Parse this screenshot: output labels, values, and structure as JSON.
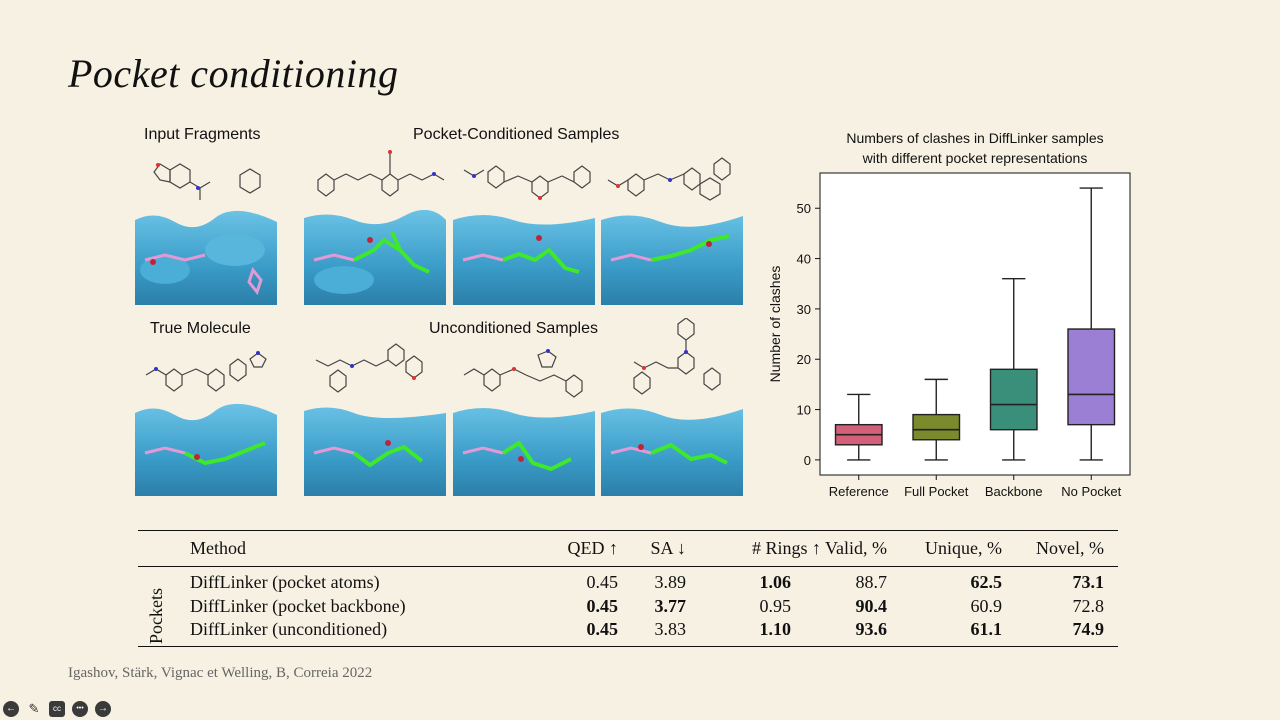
{
  "slide": {
    "title": "Pocket conditioning",
    "citation": "Igashov, Stärk, Vignac et Welling, B, Correia 2022"
  },
  "figure": {
    "input_fragments": "Input Fragments",
    "pocket_conditioned": "Pocket-Conditioned Samples",
    "true_molecule": "True Molecule",
    "unconditioned": "Unconditioned Samples"
  },
  "chart_data": {
    "type": "box",
    "title": [
      "Numbers of clashes in DiffLinker samples",
      "with different pocket representations"
    ],
    "xlabel": "",
    "ylabel": "Number of clashes",
    "ylim": [
      -3,
      57
    ],
    "yticks": [
      0,
      10,
      20,
      30,
      40,
      50
    ],
    "categories": [
      "Reference",
      "Full Pocket",
      "Backbone",
      "No Pocket"
    ],
    "boxes": [
      {
        "min": 0,
        "q1": 3,
        "median": 5,
        "q3": 7,
        "max": 13,
        "color": "#d45f78"
      },
      {
        "min": 0,
        "q1": 4,
        "median": 6,
        "q3": 9,
        "max": 16,
        "color": "#7a8a2c"
      },
      {
        "min": 0,
        "q1": 6,
        "median": 11,
        "q3": 18,
        "max": 36,
        "color": "#3a8f7a"
      },
      {
        "min": 0,
        "q1": 7,
        "median": 13,
        "q3": 26,
        "max": 54,
        "color": "#9b7fd4"
      }
    ],
    "grid": false
  },
  "table": {
    "headers": [
      "Method",
      "QED ↑",
      "SA ↓",
      "# Rings ↑",
      "Valid, %",
      "Unique, %",
      "Novel, %"
    ],
    "group_label": "Pockets",
    "rows": [
      {
        "method": "DiffLinker (pocket atoms)",
        "qed": "0.45",
        "sa": "3.89",
        "rings": "1.06",
        "valid": "88.7",
        "unique": "62.5",
        "novel": "73.1",
        "bold": {
          "qed": false,
          "sa": false,
          "rings": true,
          "valid": false,
          "unique": true,
          "novel": true
        }
      },
      {
        "method": "DiffLinker (pocket backbone)",
        "qed": "0.45",
        "sa": "3.77",
        "rings": "0.95",
        "valid": "90.4",
        "unique": "60.9",
        "novel": "72.8",
        "bold": {
          "qed": true,
          "sa": true,
          "rings": false,
          "valid": true,
          "unique": false,
          "novel": false
        }
      },
      {
        "method": "DiffLinker (unconditioned)",
        "qed": "0.45",
        "sa": "3.83",
        "rings": "1.10",
        "valid": "93.6",
        "unique": "61.1",
        "novel": "74.9",
        "bold": {
          "qed": true,
          "sa": false,
          "rings": true,
          "valid": true,
          "unique": true,
          "novel": true
        }
      }
    ]
  },
  "controls": {
    "icons": [
      "prev-icon",
      "pen-icon",
      "captions-icon",
      "more-icon",
      "next-icon"
    ],
    "captions_label": "cc",
    "more_label": "•••",
    "prev_label": "←",
    "next_label": "→",
    "pen_label": "✎"
  }
}
